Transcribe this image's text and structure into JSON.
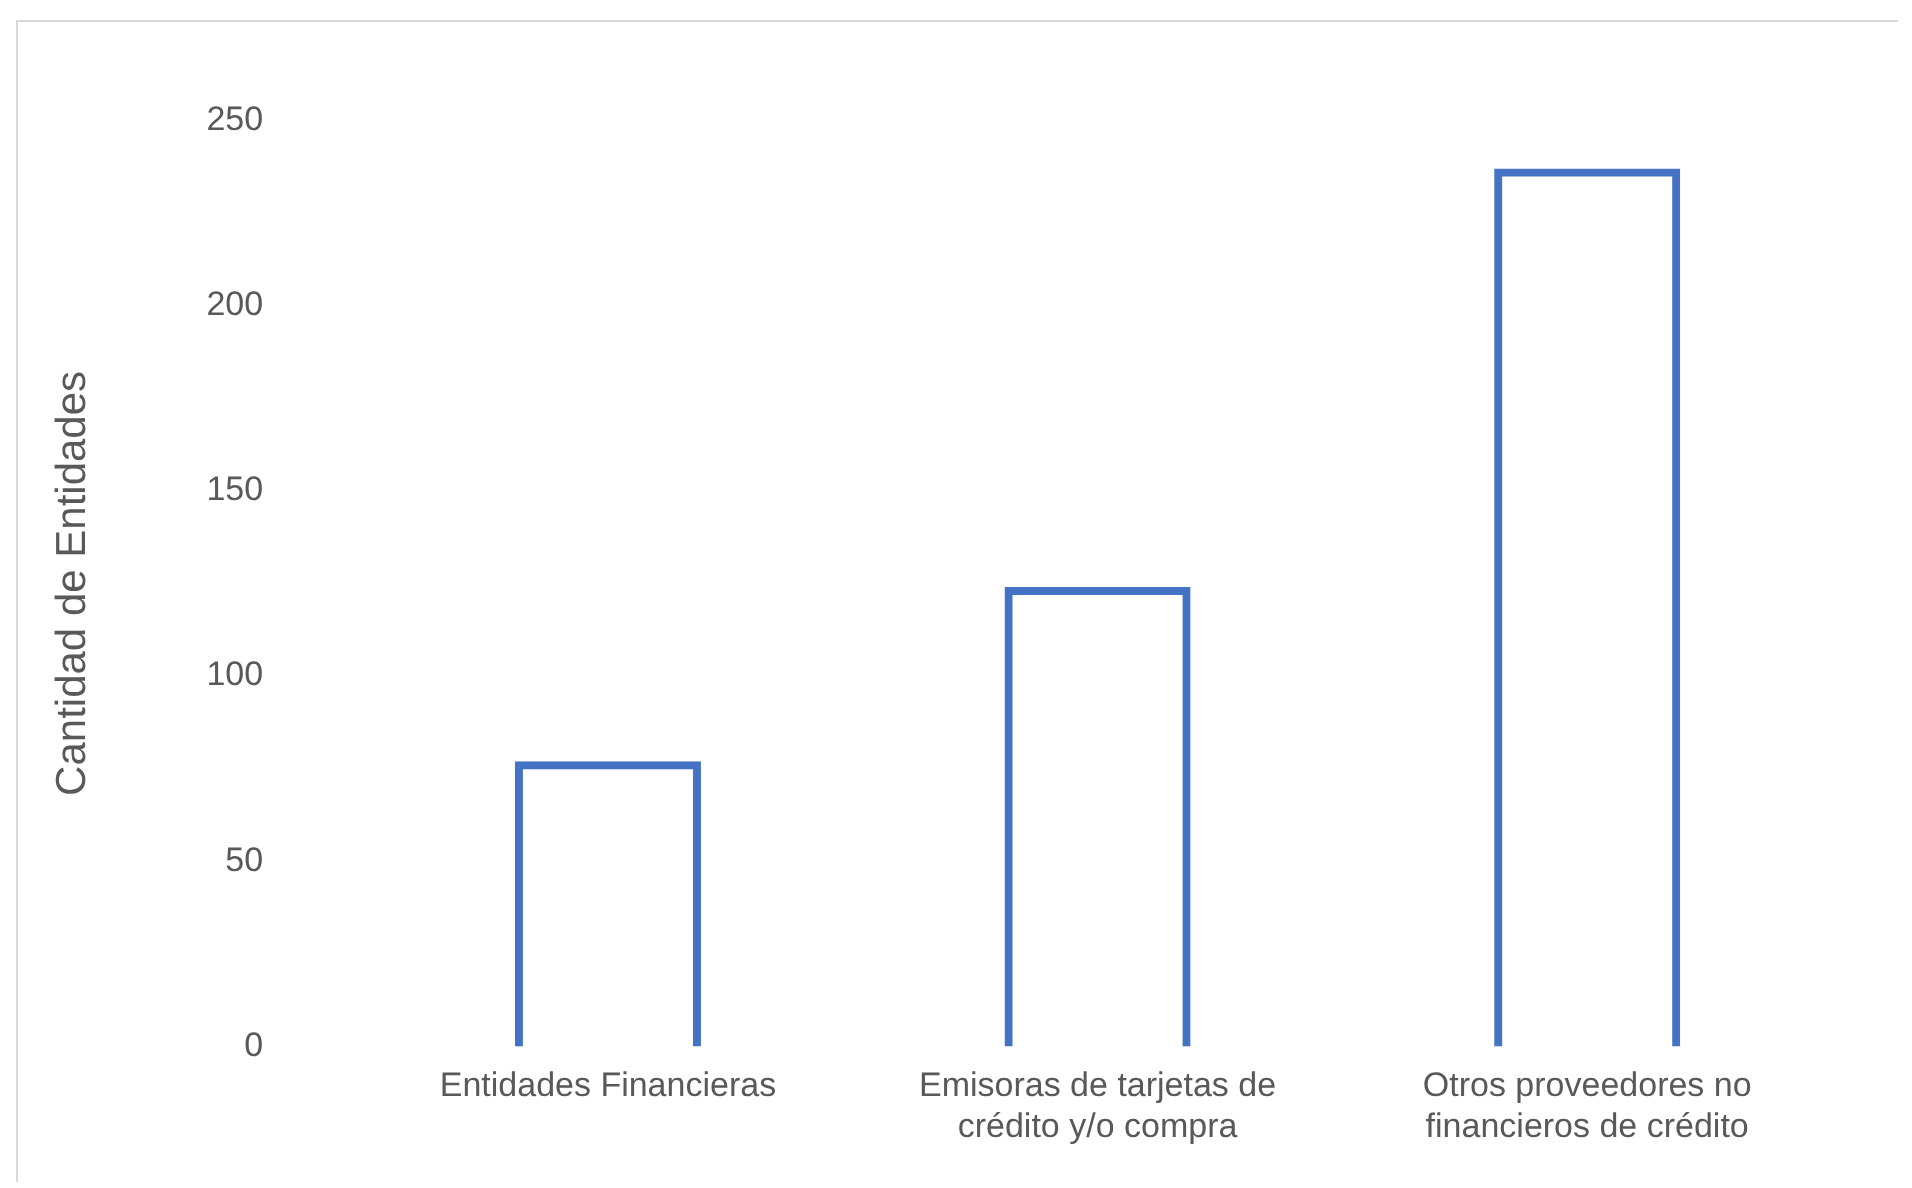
{
  "chart_data": {
    "type": "bar",
    "ylabel": "Cantidad de Entidades",
    "categories": [
      "Entidades Financieras",
      "Emisoras de tarjetas de crédito y/o compra",
      "Otros proveedores no financieros de crédito"
    ],
    "values": [
      77,
      124,
      237
    ],
    "color": "#4472c4",
    "ylim": [
      0,
      250
    ],
    "yticks": [
      0,
      50,
      100,
      150,
      200,
      250
    ],
    "grid": false,
    "legend": false
  }
}
